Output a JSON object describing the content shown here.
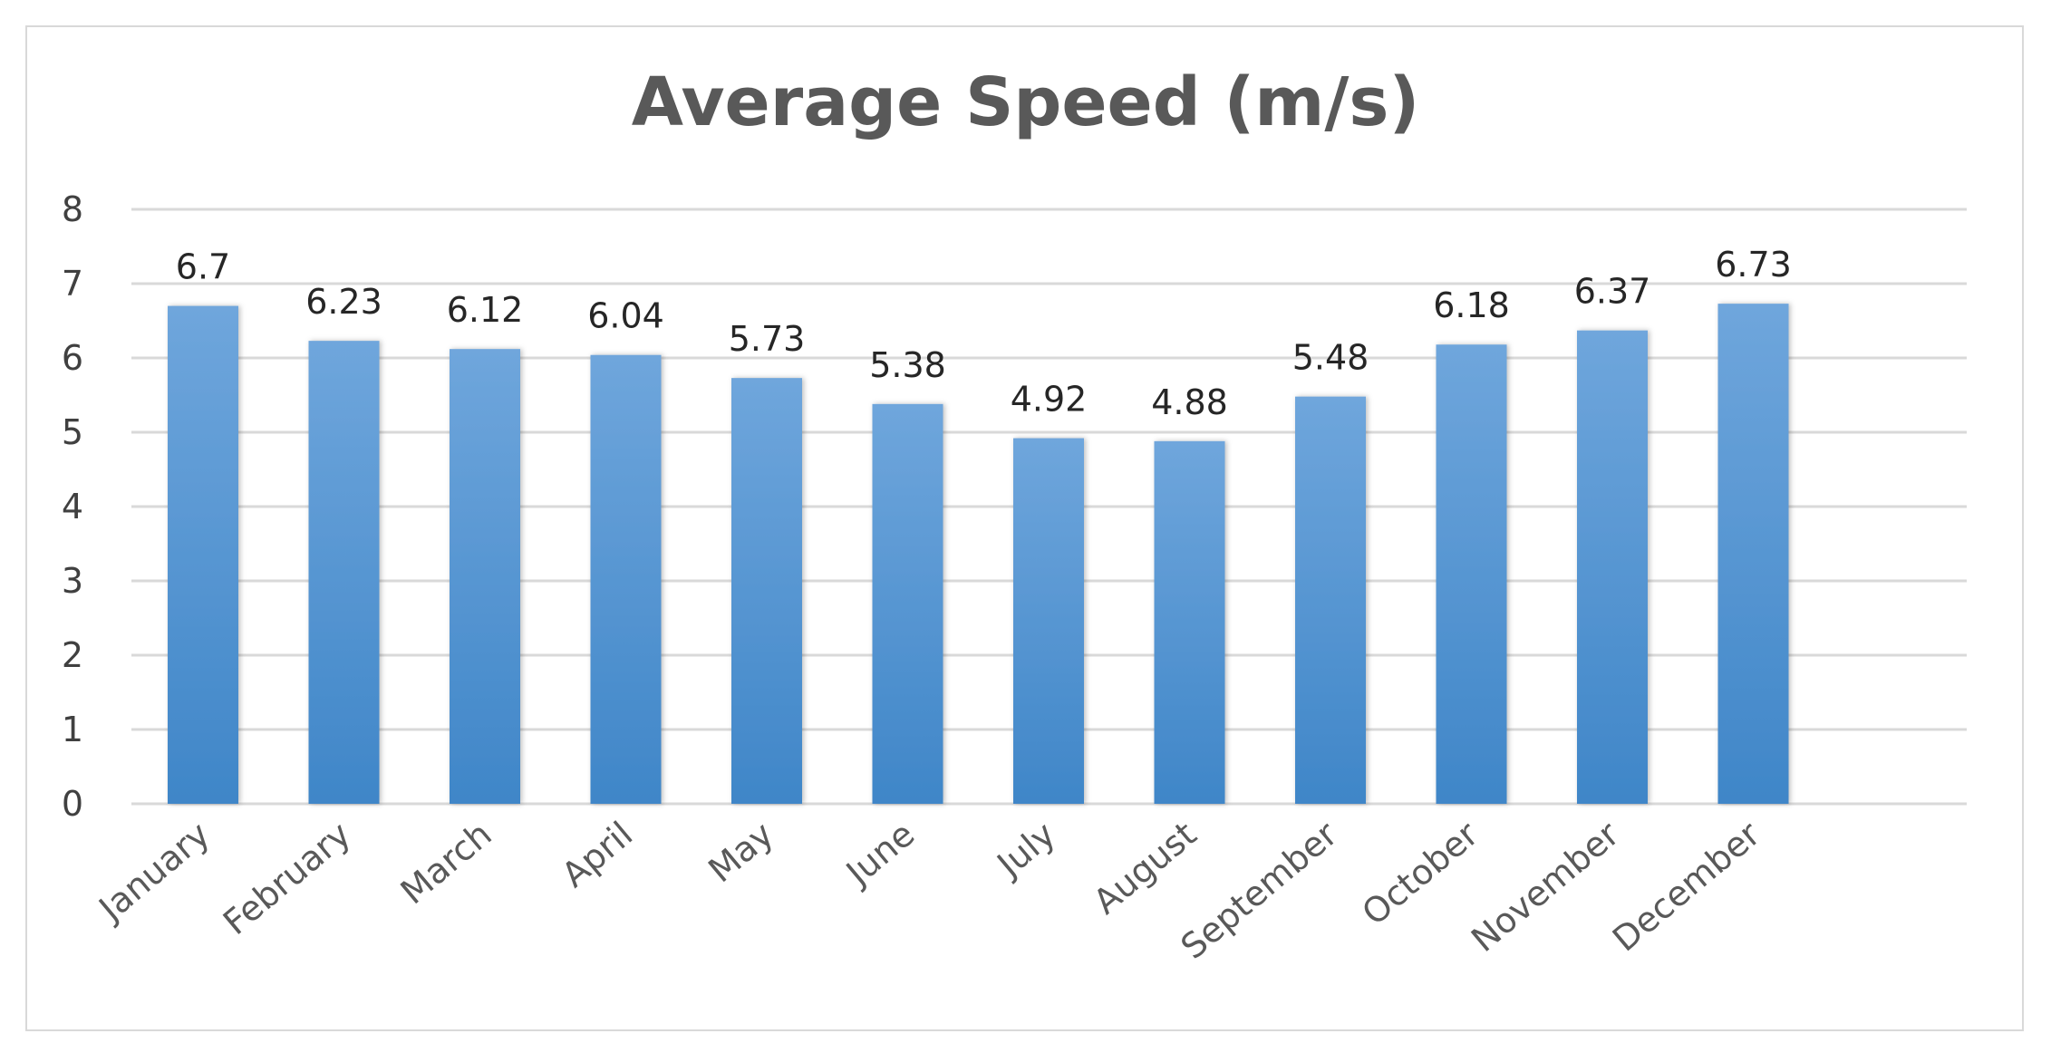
{
  "chart_data": {
    "type": "bar",
    "title": "Average Speed (m/s)",
    "xlabel": "",
    "ylabel": "",
    "categories": [
      "January",
      "February",
      "March",
      "April",
      "May",
      "June",
      "July",
      "August",
      "September",
      "October",
      "November",
      "December"
    ],
    "values": [
      6.7,
      6.23,
      6.12,
      6.04,
      5.73,
      5.38,
      4.92,
      4.88,
      5.48,
      6.18,
      6.37,
      6.73
    ],
    "data_labels": [
      "6.7",
      "6.23",
      "6.12",
      "6.04",
      "5.73",
      "5.38",
      "4.92",
      "4.88",
      "5.48",
      "6.18",
      "6.37",
      "6.73"
    ],
    "ylim": [
      0,
      8
    ],
    "yticks": [
      "0",
      "1",
      "2",
      "3",
      "4",
      "5",
      "6",
      "7",
      "8"
    ],
    "grid": true,
    "legend": "none",
    "colors": {
      "bar_top": "#6fa6dc",
      "bar_bottom": "#3f86c8",
      "grid": "#d9d9d9",
      "title": "#595959"
    }
  }
}
